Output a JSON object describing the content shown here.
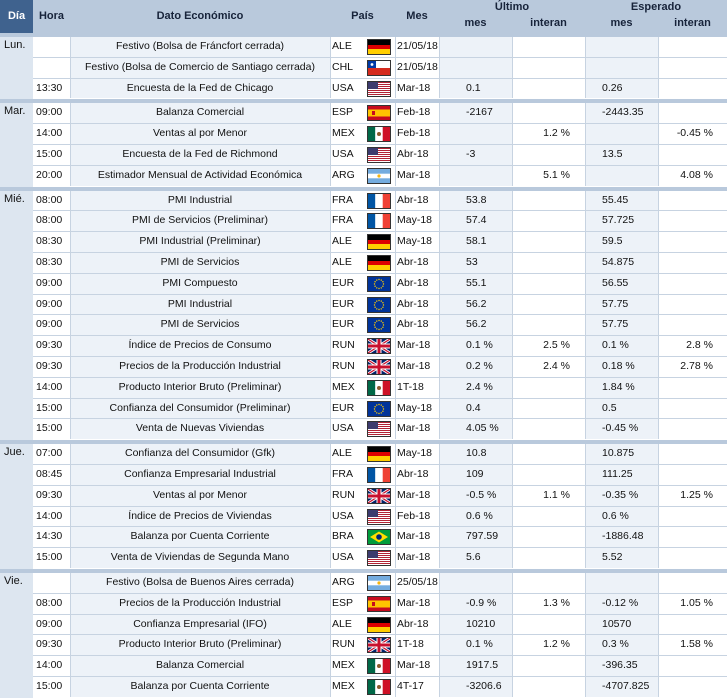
{
  "header": {
    "dia": "Día",
    "hora": "Hora",
    "dato": "Dato Económico",
    "pais": "País",
    "mes": "Mes",
    "ultimo": "Último",
    "esperado": "Esperado",
    "mes_sub": "mes",
    "interan_sub": "interan"
  },
  "colors": {
    "header_bg": "#b9c9dc",
    "dia_bg": "#3f628e",
    "row_shade": "#edf2f8",
    "grid": "#c7d3e1"
  },
  "days": [
    {
      "label": "Lun.",
      "rows": [
        {
          "hora": "",
          "dato": "Festivo (Bolsa de Fráncfort cerrada)",
          "pais": "ALE",
          "flag": "de",
          "mes": "21/05/18",
          "u_mes": "",
          "u_int": "",
          "e_mes": "",
          "e_int": ""
        },
        {
          "hora": "",
          "dato": "Festivo (Bolsa de Comercio de Santiago cerrada)",
          "pais": "CHL",
          "flag": "cl",
          "mes": "21/05/18",
          "u_mes": "",
          "u_int": "",
          "e_mes": "",
          "e_int": ""
        },
        {
          "hora": "13:30",
          "dato": "Encuesta de la Fed de Chicago",
          "pais": "USA",
          "flag": "us",
          "mes": "Mar-18",
          "u_mes": "0.1",
          "u_int": "",
          "e_mes": "0.26",
          "e_int": ""
        }
      ]
    },
    {
      "label": "Mar.",
      "rows": [
        {
          "hora": "09:00",
          "dato": "Balanza Comercial",
          "pais": "ESP",
          "flag": "es",
          "mes": "Feb-18",
          "u_mes": "-2167",
          "u_int": "",
          "e_mes": "-2443.35",
          "e_int": ""
        },
        {
          "hora": "14:00",
          "dato": "Ventas al por Menor",
          "pais": "MEX",
          "flag": "mx",
          "mes": "Feb-18",
          "u_mes": "",
          "u_int": "1.2 %",
          "e_mes": "",
          "e_int": "-0.45 %"
        },
        {
          "hora": "15:00",
          "dato": "Encuesta de la Fed de Richmond",
          "pais": "USA",
          "flag": "us",
          "mes": "Abr-18",
          "u_mes": "-3",
          "u_int": "",
          "e_mes": "13.5",
          "e_int": ""
        },
        {
          "hora": "20:00",
          "dato": "Estimador Mensual de Actividad Económica",
          "pais": "ARG",
          "flag": "ar",
          "mes": "Mar-18",
          "u_mes": "",
          "u_int": "5.1 %",
          "e_mes": "",
          "e_int": "4.08 %"
        }
      ]
    },
    {
      "label": "Mié.",
      "rows": [
        {
          "hora": "08:00",
          "dato": "PMI Industrial",
          "pais": "FRA",
          "flag": "fr",
          "mes": "Abr-18",
          "u_mes": "53.8",
          "u_int": "",
          "e_mes": "55.45",
          "e_int": ""
        },
        {
          "hora": "08:00",
          "dato": "PMI de Servicios (Preliminar)",
          "pais": "FRA",
          "flag": "fr",
          "mes": "May-18",
          "u_mes": "57.4",
          "u_int": "",
          "e_mes": "57.725",
          "e_int": ""
        },
        {
          "hora": "08:30",
          "dato": "PMI Industrial (Preliminar)",
          "pais": "ALE",
          "flag": "de",
          "mes": "May-18",
          "u_mes": "58.1",
          "u_int": "",
          "e_mes": "59.5",
          "e_int": ""
        },
        {
          "hora": "08:30",
          "dato": "PMI de Servicios",
          "pais": "ALE",
          "flag": "de",
          "mes": "Abr-18",
          "u_mes": "53",
          "u_int": "",
          "e_mes": "54.875",
          "e_int": ""
        },
        {
          "hora": "09:00",
          "dato": "PMI Compuesto",
          "pais": "EUR",
          "flag": "eu",
          "mes": "Abr-18",
          "u_mes": "55.1",
          "u_int": "",
          "e_mes": "56.55",
          "e_int": ""
        },
        {
          "hora": "09:00",
          "dato": "PMI Industrial",
          "pais": "EUR",
          "flag": "eu",
          "mes": "Abr-18",
          "u_mes": "56.2",
          "u_int": "",
          "e_mes": "57.75",
          "e_int": ""
        },
        {
          "hora": "09:00",
          "dato": "PMI de Servicios",
          "pais": "EUR",
          "flag": "eu",
          "mes": "Abr-18",
          "u_mes": "56.2",
          "u_int": "",
          "e_mes": "57.75",
          "e_int": ""
        },
        {
          "hora": "09:30",
          "dato": "Índice de Precios de Consumo",
          "pais": "RUN",
          "flag": "gb",
          "mes": "Mar-18",
          "u_mes": "0.1 %",
          "u_int": "2.5 %",
          "e_mes": "0.1 %",
          "e_int": "2.8 %"
        },
        {
          "hora": "09:30",
          "dato": "Precios de la Producción Industrial",
          "pais": "RUN",
          "flag": "gb",
          "mes": "Mar-18",
          "u_mes": "0.2 %",
          "u_int": "2.4 %",
          "e_mes": "0.18 %",
          "e_int": "2.78 %"
        },
        {
          "hora": "14:00",
          "dato": "Producto Interior Bruto (Preliminar)",
          "pais": "MEX",
          "flag": "mx",
          "mes": "1T-18",
          "u_mes": "2.4 %",
          "u_int": "",
          "e_mes": "1.84 %",
          "e_int": ""
        },
        {
          "hora": "15:00",
          "dato": "Confianza del Consumidor (Preliminar)",
          "pais": "EUR",
          "flag": "eu",
          "mes": "May-18",
          "u_mes": "0.4",
          "u_int": "",
          "e_mes": "0.5",
          "e_int": ""
        },
        {
          "hora": "15:00",
          "dato": "Venta de Nuevas Viviendas",
          "pais": "USA",
          "flag": "us",
          "mes": "Mar-18",
          "u_mes": "4.05 %",
          "u_int": "",
          "e_mes": "-0.45 %",
          "e_int": ""
        }
      ]
    },
    {
      "label": "Jue.",
      "rows": [
        {
          "hora": "07:00",
          "dato": "Confianza del Consumidor (Gfk)",
          "pais": "ALE",
          "flag": "de",
          "mes": "May-18",
          "u_mes": "10.8",
          "u_int": "",
          "e_mes": "10.875",
          "e_int": ""
        },
        {
          "hora": "08:45",
          "dato": "Confianza Empresarial Industrial",
          "pais": "FRA",
          "flag": "fr",
          "mes": "Abr-18",
          "u_mes": "109",
          "u_int": "",
          "e_mes": "111.25",
          "e_int": ""
        },
        {
          "hora": "09:30",
          "dato": "Ventas al por Menor",
          "pais": "RUN",
          "flag": "gb",
          "mes": "Mar-18",
          "u_mes": "-0.5 %",
          "u_int": "1.1 %",
          "e_mes": "-0.35 %",
          "e_int": "1.25 %"
        },
        {
          "hora": "14:00",
          "dato": "Índice de Precios de Viviendas",
          "pais": "USA",
          "flag": "us",
          "mes": "Feb-18",
          "u_mes": "0.6 %",
          "u_int": "",
          "e_mes": "0.6 %",
          "e_int": ""
        },
        {
          "hora": "14:30",
          "dato": "Balanza por Cuenta Corriente",
          "pais": "BRA",
          "flag": "br",
          "mes": "Mar-18",
          "u_mes": "797.59",
          "u_int": "",
          "e_mes": "-1886.48",
          "e_int": ""
        },
        {
          "hora": "15:00",
          "dato": "Venta de Viviendas de Segunda Mano",
          "pais": "USA",
          "flag": "us",
          "mes": "Mar-18",
          "u_mes": "5.6",
          "u_int": "",
          "e_mes": "5.52",
          "e_int": ""
        }
      ]
    },
    {
      "label": "Vie.",
      "rows": [
        {
          "hora": "",
          "dato": "Festivo (Bolsa de Buenos Aires cerrada)",
          "pais": "ARG",
          "flag": "ar",
          "mes": "25/05/18",
          "u_mes": "",
          "u_int": "",
          "e_mes": "",
          "e_int": ""
        },
        {
          "hora": "08:00",
          "dato": "Precios de la Producción Industrial",
          "pais": "ESP",
          "flag": "es",
          "mes": "Mar-18",
          "u_mes": "-0.9 %",
          "u_int": "1.3 %",
          "e_mes": "-0.12 %",
          "e_int": "1.05 %"
        },
        {
          "hora": "09:00",
          "dato": "Confianza Empresarial (IFO)",
          "pais": "ALE",
          "flag": "de",
          "mes": "Abr-18",
          "u_mes": "10210",
          "u_int": "",
          "e_mes": "10570",
          "e_int": ""
        },
        {
          "hora": "09:30",
          "dato": "Producto Interior Bruto (Preliminar)",
          "pais": "RUN",
          "flag": "gb",
          "mes": "1T-18",
          "u_mes": "0.1 %",
          "u_int": "1.2 %",
          "e_mes": "0.3 %",
          "e_int": "1.58 %"
        },
        {
          "hora": "14:00",
          "dato": "Balanza Comercial",
          "pais": "MEX",
          "flag": "mx",
          "mes": "Mar-18",
          "u_mes": "1917.5",
          "u_int": "",
          "e_mes": "-396.35",
          "e_int": ""
        },
        {
          "hora": "15:00",
          "dato": "Balanza por Cuenta Corriente",
          "pais": "MEX",
          "flag": "mx",
          "mes": "4T-17",
          "u_mes": "-3206.6",
          "u_int": "",
          "e_mes": "-4707.825",
          "e_int": ""
        }
      ]
    }
  ]
}
